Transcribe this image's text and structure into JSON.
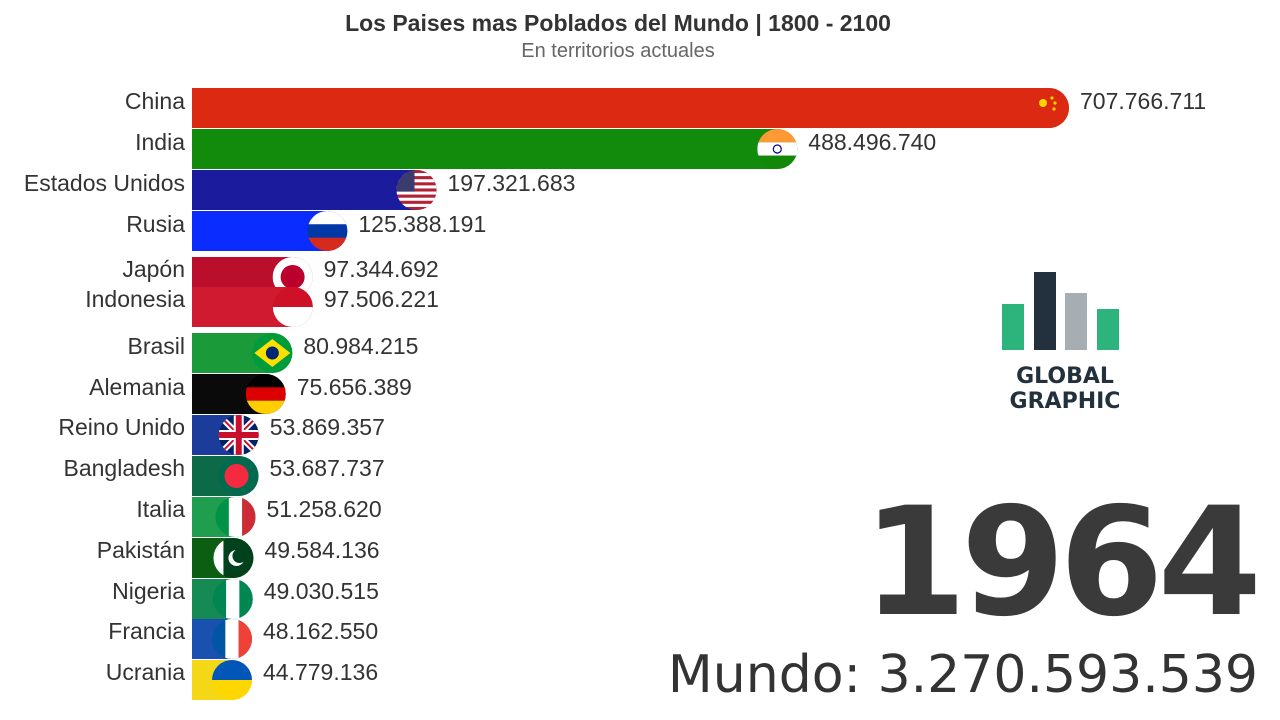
{
  "chart_data": {
    "type": "bar",
    "orientation": "horizontal",
    "title": "Los Paises mas Poblados del Mundo | 1800 - 2100",
    "subtitle": "En territorios actuales",
    "xlim": [
      0,
      707766711
    ],
    "grid": false,
    "legend": "none",
    "series": [
      {
        "categories": [
          "China",
          "India",
          "Estados Unidos",
          "Rusia",
          "Japón",
          "Indonesia",
          "Brasil",
          "Alemania",
          "Reino Unido",
          "Bangladesh",
          "Italia",
          "Pakistán",
          "Nigeria",
          "Francia",
          "Ucrania"
        ],
        "values": [
          707766711,
          488496740,
          197321683,
          125388191,
          97344692,
          97506221,
          80984215,
          75656389,
          53869357,
          53687737,
          51258620,
          49584136,
          49030515,
          48162550,
          44779136
        ],
        "value_labels": [
          "707.766.711",
          "488.496.740",
          "197.321.683",
          "125.388.191",
          "97.344.692",
          "97.506.221",
          "80.984.215",
          "75.656.389",
          "53.869.357",
          "53.687.737",
          "51.258.620",
          "49.584.136",
          "49.030.515",
          "48.162.550",
          "44.779.136"
        ],
        "colors": [
          "#dc2a12",
          "#128a0c",
          "#1b1b9e",
          "#0a2cff",
          "#bb0e2c",
          "#cf1a30",
          "#1b9a3a",
          "#0a0a0a",
          "#1c3c9c",
          "#0d6a48",
          "#1e9e4e",
          "#0b5e12",
          "#168a55",
          "#1a50b0",
          "#f4d818"
        ],
        "flag_icons": [
          "china-flag-icon",
          "india-flag-icon",
          "usa-flag-icon",
          "russia-flag-icon",
          "japan-flag-icon",
          "indonesia-flag-icon",
          "brazil-flag-icon",
          "germany-flag-icon",
          "uk-flag-icon",
          "bangladesh-flag-icon",
          "italy-flag-icon",
          "pakistan-flag-icon",
          "nigeria-flag-icon",
          "france-flag-icon",
          "ukraine-flag-icon"
        ]
      }
    ]
  },
  "logo": {
    "line1": "GLOBAL",
    "line2": "GRAPHIC",
    "icon": "bar-chart-logo-icon",
    "bar_levels": [
      0.56,
      0.95,
      0.7,
      0.5
    ],
    "bar_colors": [
      "#2db37c",
      "#22313d",
      "#a6aeb4",
      "#2db37c"
    ]
  },
  "year": "1964",
  "world_total": "Mundo: 3.270.593.539"
}
